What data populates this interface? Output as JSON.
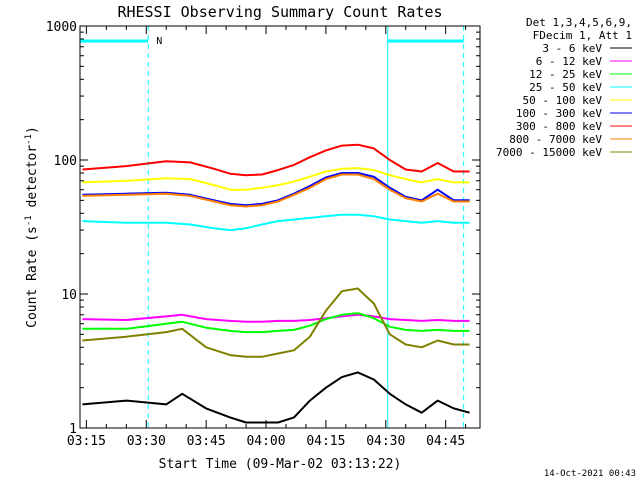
{
  "chart_data": {
    "type": "line",
    "title": "RHESSI Observing Summary Count Rates",
    "xlabel": "Start Time (09-Mar-02 03:13:22)",
    "ylabel_main": "Count Rate (s",
    "ylabel_sup1": "-1",
    "ylabel_mid": " detector",
    "ylabel_sup2": "-1",
    "ylabel_end": ")",
    "y_scale": "log",
    "ylim": [
      1,
      1000
    ],
    "x_ticks": [
      "03:15",
      "03:30",
      "03:45",
      "04:00",
      "04:15",
      "04:30",
      "04:45"
    ],
    "x_tick_minutes": [
      0,
      15,
      30,
      45,
      60,
      75,
      90
    ],
    "x_range_minutes": [
      -1.6,
      98.6
    ],
    "y_ticks": [
      {
        "value": 1,
        "label": "1"
      },
      {
        "value": 10,
        "label": "10"
      },
      {
        "value": 100,
        "label": "100"
      },
      {
        "value": 1000,
        "label": "1000"
      }
    ],
    "legend_header": [
      "Det 1,3,4,5,6,9,",
      "FDecim 1, Att 1"
    ],
    "night_label": "N",
    "night_bars": [
      {
        "start_min": -1.6,
        "end_min": 15.5
      },
      {
        "start_min": 75.5,
        "end_min": 94.5
      }
    ],
    "saa_lines_min": [
      -1.6,
      75.5
    ],
    "night_lines_min": [
      15.5,
      94.5
    ],
    "series": [
      {
        "name": "3 - 6 keV",
        "color": "#000000",
        "x": [
          -1,
          10,
          20,
          24,
          30,
          36,
          40,
          44,
          48,
          52,
          56,
          60,
          64,
          68,
          72,
          76,
          80,
          84,
          88,
          92,
          96
        ],
        "y": [
          1.5,
          1.6,
          1.5,
          1.8,
          1.4,
          1.2,
          1.1,
          1.1,
          1.1,
          1.2,
          1.6,
          2.0,
          2.4,
          2.6,
          2.3,
          1.8,
          1.5,
          1.3,
          1.6,
          1.4,
          1.3
        ]
      },
      {
        "name": "6 - 12 keV",
        "color": "#ff00ff",
        "x": [
          -1,
          10,
          20,
          24,
          30,
          36,
          40,
          44,
          48,
          52,
          56,
          60,
          64,
          68,
          72,
          76,
          80,
          84,
          88,
          92,
          96
        ],
        "y": [
          6.5,
          6.4,
          6.8,
          7.0,
          6.5,
          6.3,
          6.2,
          6.2,
          6.3,
          6.3,
          6.4,
          6.6,
          6.8,
          7.0,
          6.8,
          6.5,
          6.4,
          6.3,
          6.4,
          6.3,
          6.3
        ]
      },
      {
        "name": "12 - 25 keV",
        "color": "#00ff00",
        "x": [
          -1,
          10,
          20,
          24,
          30,
          36,
          40,
          44,
          48,
          52,
          56,
          60,
          64,
          68,
          72,
          76,
          80,
          84,
          88,
          92,
          96
        ],
        "y": [
          5.5,
          5.5,
          6.0,
          6.2,
          5.6,
          5.3,
          5.2,
          5.2,
          5.3,
          5.4,
          5.8,
          6.5,
          7.0,
          7.2,
          6.6,
          5.7,
          5.4,
          5.3,
          5.4,
          5.3,
          5.3
        ]
      },
      {
        "name": "25 - 50 keV",
        "color": "#00ffff",
        "x": [
          -1,
          10,
          20,
          26,
          32,
          36,
          40,
          44,
          48,
          52,
          56,
          60,
          64,
          68,
          72,
          76,
          80,
          84,
          88,
          92,
          96
        ],
        "y": [
          35,
          34,
          34,
          33,
          31,
          30,
          31,
          33,
          35,
          36,
          37,
          38,
          39,
          39,
          38,
          36,
          35,
          34,
          35,
          34,
          34
        ]
      },
      {
        "name": "50 - 100 keV",
        "color": "#ffff00",
        "x": [
          -1,
          10,
          20,
          26,
          32,
          36,
          40,
          44,
          48,
          52,
          56,
          60,
          64,
          68,
          72,
          76,
          80,
          84,
          88,
          92,
          96
        ],
        "y": [
          68,
          70,
          73,
          72,
          65,
          60,
          60,
          62,
          65,
          69,
          75,
          82,
          86,
          87,
          84,
          77,
          72,
          68,
          72,
          68,
          68
        ]
      },
      {
        "name": "100 - 300 keV",
        "color": "#0000ff",
        "x": [
          -1,
          10,
          20,
          26,
          32,
          36,
          40,
          44,
          48,
          52,
          56,
          60,
          64,
          68,
          72,
          76,
          80,
          84,
          88,
          92,
          96
        ],
        "y": [
          55,
          56,
          57,
          55,
          50,
          47,
          46,
          47,
          50,
          56,
          64,
          74,
          80,
          80,
          75,
          62,
          53,
          50,
          60,
          50,
          50
        ]
      },
      {
        "name": "300 - 800 keV",
        "color": "#ff0000",
        "x": [
          -1,
          10,
          20,
          26,
          32,
          36,
          40,
          44,
          48,
          52,
          56,
          60,
          64,
          68,
          72,
          76,
          80,
          84,
          88,
          92,
          96
        ],
        "y": [
          85,
          90,
          98,
          96,
          86,
          79,
          77,
          78,
          84,
          92,
          105,
          118,
          128,
          130,
          122,
          100,
          85,
          82,
          95,
          82,
          82
        ]
      },
      {
        "name": "800 - 7000 keV",
        "color": "#ff8000",
        "x": [
          -1,
          10,
          20,
          26,
          32,
          36,
          40,
          44,
          48,
          52,
          56,
          60,
          64,
          68,
          72,
          76,
          80,
          84,
          88,
          92,
          96
        ],
        "y": [
          54,
          55,
          56,
          54,
          49,
          46,
          45,
          46,
          49,
          55,
          62,
          72,
          78,
          78,
          72,
          60,
          52,
          49,
          56,
          49,
          49
        ]
      },
      {
        "name": "7000 - 15000 keV",
        "color": "#808000",
        "x": [
          -1,
          10,
          20,
          24,
          30,
          36,
          40,
          44,
          48,
          52,
          56,
          60,
          64,
          68,
          72,
          76,
          80,
          84,
          88,
          92,
          96
        ],
        "y": [
          4.5,
          4.8,
          5.2,
          5.5,
          4.0,
          3.5,
          3.4,
          3.4,
          3.6,
          3.8,
          4.8,
          7.5,
          10.5,
          11.0,
          8.5,
          5.0,
          4.2,
          4.0,
          4.5,
          4.2,
          4.2
        ]
      }
    ]
  },
  "timestamp": "14-Oct-2021 00:43"
}
